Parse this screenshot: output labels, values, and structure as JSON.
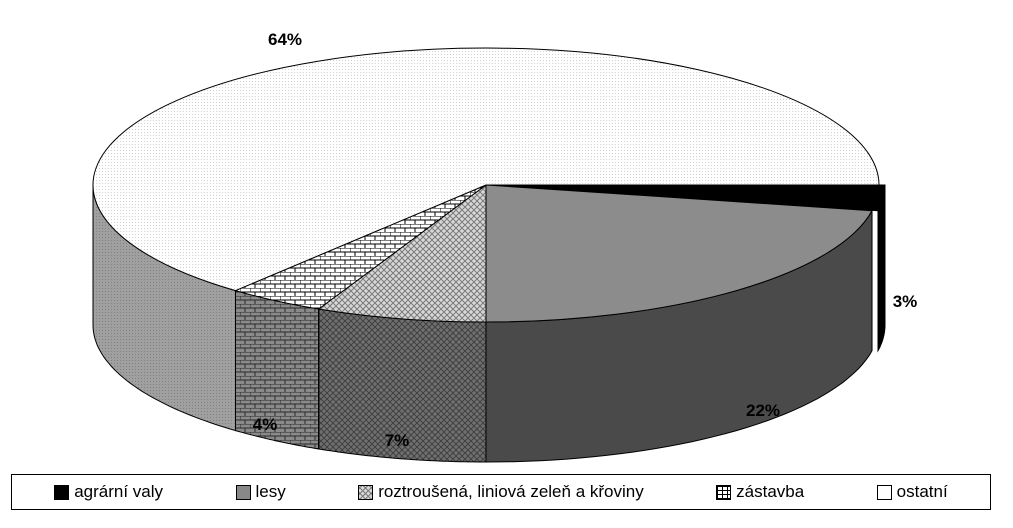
{
  "chart_data": {
    "type": "pie",
    "style": "3d-exploded-tilted",
    "title": "",
    "legend_position": "bottom",
    "slices": [
      {
        "name": "agrární valy",
        "value": 3,
        "label": "3%",
        "color": "#000000",
        "pattern": "solid"
      },
      {
        "name": "lesy",
        "value": 22,
        "label": "22%",
        "color": "#888888",
        "pattern": "solid-gray"
      },
      {
        "name": "roztroušená, liniová zeleň a křoviny",
        "value": 7,
        "label": "7%",
        "color": "#b8b8b8",
        "pattern": "crosshatch"
      },
      {
        "name": "zástavba",
        "value": 4,
        "label": "4%",
        "color": "#ffffff",
        "pattern": "brick"
      },
      {
        "name": "ostatní",
        "value": 64,
        "label": "64%",
        "color": "#f4f4f4",
        "pattern": "light-dots"
      }
    ]
  }
}
